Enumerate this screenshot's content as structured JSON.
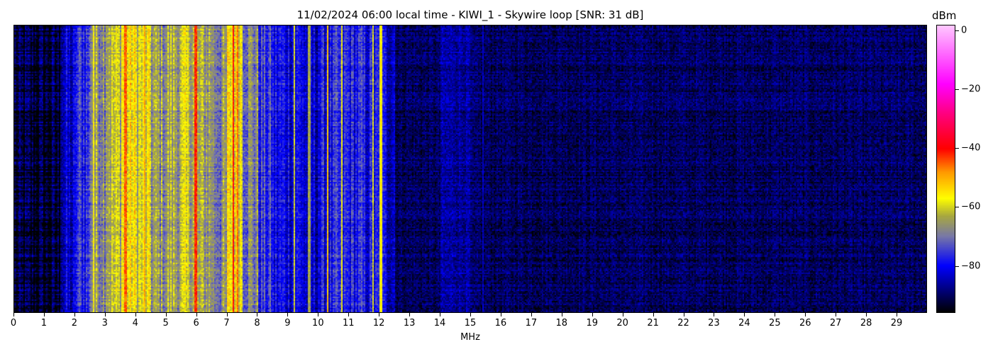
{
  "chart_data": {
    "type": "heatmap",
    "title": "11/02/2024 06:00 local time - KIWI_1 - Skywire loop [SNR: 31 dB]",
    "xlabel": "MHz",
    "xlim": [
      0,
      30
    ],
    "xticks": [
      0,
      1,
      2,
      3,
      4,
      5,
      6,
      7,
      8,
      9,
      10,
      11,
      12,
      13,
      14,
      15,
      16,
      17,
      18,
      19,
      20,
      21,
      22,
      23,
      24,
      25,
      26,
      27,
      28,
      29
    ],
    "colorbar": {
      "label": "dBm",
      "range": [
        -96,
        2
      ],
      "ticks": [
        0,
        -20,
        -40,
        -60,
        -80
      ]
    },
    "colormap_stops": [
      [
        -96,
        "#000000"
      ],
      [
        -88,
        "#000080"
      ],
      [
        -80,
        "#0000ff"
      ],
      [
        -70,
        "#7878a8"
      ],
      [
        -63,
        "#a8a840"
      ],
      [
        -57,
        "#ffff00"
      ],
      [
        -48,
        "#ff9900"
      ],
      [
        -40,
        "#ff0000"
      ],
      [
        -28,
        "#ff0080"
      ],
      [
        -18,
        "#ff00ff"
      ],
      [
        2,
        "#ffc8ff"
      ]
    ],
    "band_profile_mhz_dbm": [
      [
        0,
        -93
      ],
      [
        1.5,
        -84
      ],
      [
        2,
        -76
      ],
      [
        2.5,
        -66
      ],
      [
        3,
        -62
      ],
      [
        3.5,
        -57
      ],
      [
        4,
        -60
      ],
      [
        4.5,
        -66
      ],
      [
        5,
        -64
      ],
      [
        5.5,
        -62
      ],
      [
        6,
        -65
      ],
      [
        6.5,
        -68
      ],
      [
        7,
        -57
      ],
      [
        7.5,
        -68
      ],
      [
        8,
        -76
      ],
      [
        8.5,
        -80
      ],
      [
        9,
        -80
      ],
      [
        9.5,
        -83
      ],
      [
        10,
        -80
      ],
      [
        10.5,
        -78
      ],
      [
        11,
        -78
      ],
      [
        11.5,
        -80
      ],
      [
        12,
        -82
      ],
      [
        12.5,
        -90
      ],
      [
        14,
        -86
      ],
      [
        15,
        -90
      ],
      [
        30,
        -90
      ]
    ],
    "carriers_mhz_dbm": [
      [
        2.6,
        -57
      ],
      [
        3.65,
        -45
      ],
      [
        4.3,
        -50
      ],
      [
        5.95,
        -42
      ],
      [
        7.2,
        -40
      ],
      [
        7.35,
        -46
      ],
      [
        9.2,
        -60
      ],
      [
        9.7,
        -64
      ],
      [
        10.3,
        -52
      ],
      [
        10.75,
        -58
      ],
      [
        11.8,
        -60
      ],
      [
        12.05,
        -56
      ],
      [
        15.4,
        -84
      ]
    ]
  }
}
